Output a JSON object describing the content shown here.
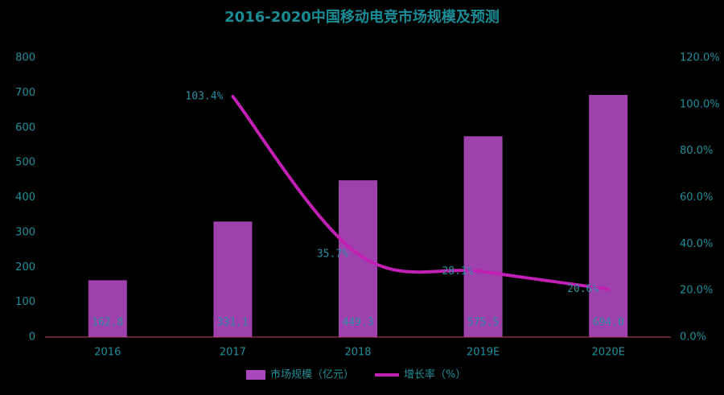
{
  "chart_data": {
    "type": "bar",
    "title": "2016-2020中国移动电竞市场规模及预测",
    "categories": [
      "2016",
      "2017",
      "2018",
      "2019E",
      "2020E"
    ],
    "series": [
      {
        "name": "市场规模（亿元）",
        "type": "bar",
        "color": "#ab47bc",
        "values": [
          162.8,
          331.1,
          449.3,
          575.5,
          694.0
        ],
        "value_labels": [
          "162.8",
          "331.1",
          "449.3",
          "575.5",
          "694.0"
        ]
      },
      {
        "name": "增长率（%）",
        "type": "line",
        "axis": "y2",
        "color": "#c21fb4",
        "values": [
          null,
          103.4,
          35.7,
          28.1,
          20.6
        ],
        "value_labels": [
          null,
          "103.4%",
          "35.7%",
          "28.1%",
          "20.6%"
        ]
      }
    ],
    "ylim": [
      0,
      800
    ],
    "yticks": [
      0,
      100,
      200,
      300,
      400,
      500,
      600,
      700,
      800
    ],
    "y2lim": [
      0,
      120
    ],
    "y2ticks": [
      {
        "value": 0,
        "label": "0.0%"
      },
      {
        "value": 20,
        "label": "20.0%"
      },
      {
        "value": 40,
        "label": "40.0%"
      },
      {
        "value": 60,
        "label": "60.0%"
      },
      {
        "value": 80,
        "label": "80.0%"
      },
      {
        "value": 100,
        "label": "100.0%"
      },
      {
        "value": 120,
        "label": "120.0%"
      }
    ],
    "legend": "bottom"
  }
}
